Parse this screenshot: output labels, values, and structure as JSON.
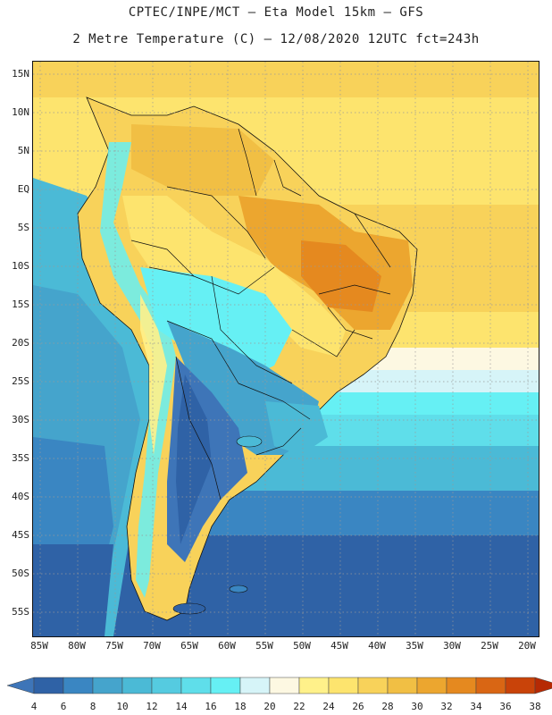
{
  "header": {
    "line1": "CPTEC/INPE/MCT –  Eta Model 15km – GFS",
    "line2": "2 Metre Temperature (C) – 12/08/2020 12UTC fct=243h"
  },
  "map": {
    "lat_labels": [
      "15N",
      "10N",
      "5N",
      "EQ",
      "5S",
      "10S",
      "15S",
      "20S",
      "25S",
      "30S",
      "35S",
      "40S",
      "45S",
      "50S",
      "55S"
    ],
    "lon_labels": [
      "85W",
      "80W",
      "75W",
      "70W",
      "65W",
      "60W",
      "55W",
      "50W",
      "45W",
      "40W",
      "35W",
      "30W",
      "25W",
      "20W"
    ]
  },
  "legend": {
    "labels": [
      "4",
      "6",
      "8",
      "10",
      "12",
      "14",
      "16",
      "18",
      "20",
      "22",
      "24",
      "26",
      "28",
      "30",
      "32",
      "34",
      "36",
      "38"
    ],
    "colors": [
      "#3e75b8",
      "#2f62a6",
      "#3a86c2",
      "#45a4cc",
      "#4bbad6",
      "#55cbe0",
      "#5fdeea",
      "#66f0f4",
      "#d6f4f8",
      "#fdf8e2",
      "#fff18a",
      "#fde46e",
      "#f8d25a",
      "#f1bf44",
      "#eca62f",
      "#e5891f",
      "#d96614",
      "#c94309",
      "#b62a04"
    ]
  }
}
